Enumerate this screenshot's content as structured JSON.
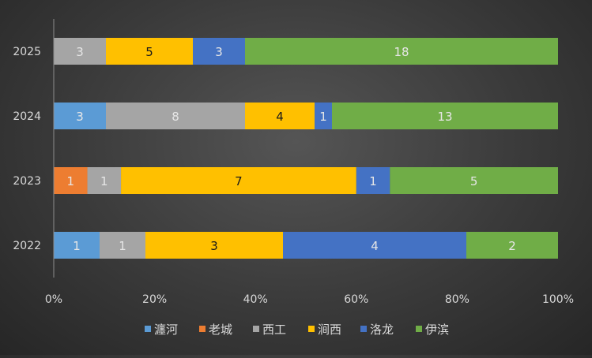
{
  "chart_data": {
    "type": "bar",
    "orientation": "horizontal",
    "stacked": "percent",
    "categories": [
      "2025",
      "2024",
      "2023",
      "2022"
    ],
    "series": [
      {
        "name": "瀍河",
        "color": "#5B9BD5",
        "values": [
          0,
          3,
          0,
          1
        ]
      },
      {
        "name": "老城",
        "color": "#ED7D31",
        "values": [
          0,
          0,
          1,
          0
        ]
      },
      {
        "name": "西工",
        "color": "#A5A5A5",
        "values": [
          3,
          8,
          1,
          1
        ]
      },
      {
        "name": "涧西",
        "color": "#FFC000",
        "values": [
          5,
          4,
          7,
          3
        ]
      },
      {
        "name": "洛龙",
        "color": "#4472C4",
        "values": [
          3,
          1,
          1,
          4
        ]
      },
      {
        "name": "伊滨",
        "color": "#70AD47",
        "values": [
          18,
          13,
          5,
          2
        ]
      }
    ],
    "xticks": [
      "0%",
      "20%",
      "40%",
      "60%",
      "80%",
      "100%"
    ],
    "xlim": [
      0,
      1
    ],
    "grid": false,
    "legend_position": "bottom",
    "data_labels": true
  }
}
